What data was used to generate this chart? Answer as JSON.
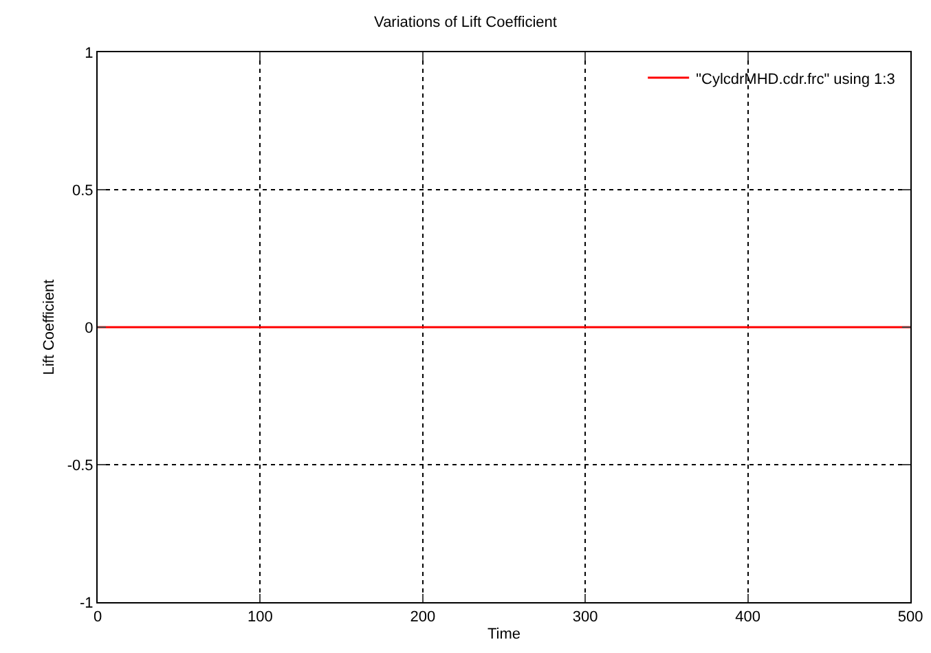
{
  "chart_data": {
    "type": "line",
    "title": "Variations of Lift Coefficient",
    "xlabel": "Time",
    "ylabel": "Lift Coefficient",
    "x": [
      0,
      500
    ],
    "series": [
      {
        "name": "\"CylcdrMHD.cdr.frc\" using 1:3",
        "color": "#ff0000",
        "values": [
          0,
          0
        ]
      }
    ],
    "xlim": [
      0,
      500
    ],
    "ylim": [
      -1,
      1
    ],
    "xticks": [
      0,
      100,
      200,
      300,
      400,
      500
    ],
    "yticks": [
      -1,
      -0.5,
      0,
      0.5,
      1
    ],
    "grid": true,
    "legend": "top right",
    "marker": "none",
    "line_style": "solid"
  }
}
